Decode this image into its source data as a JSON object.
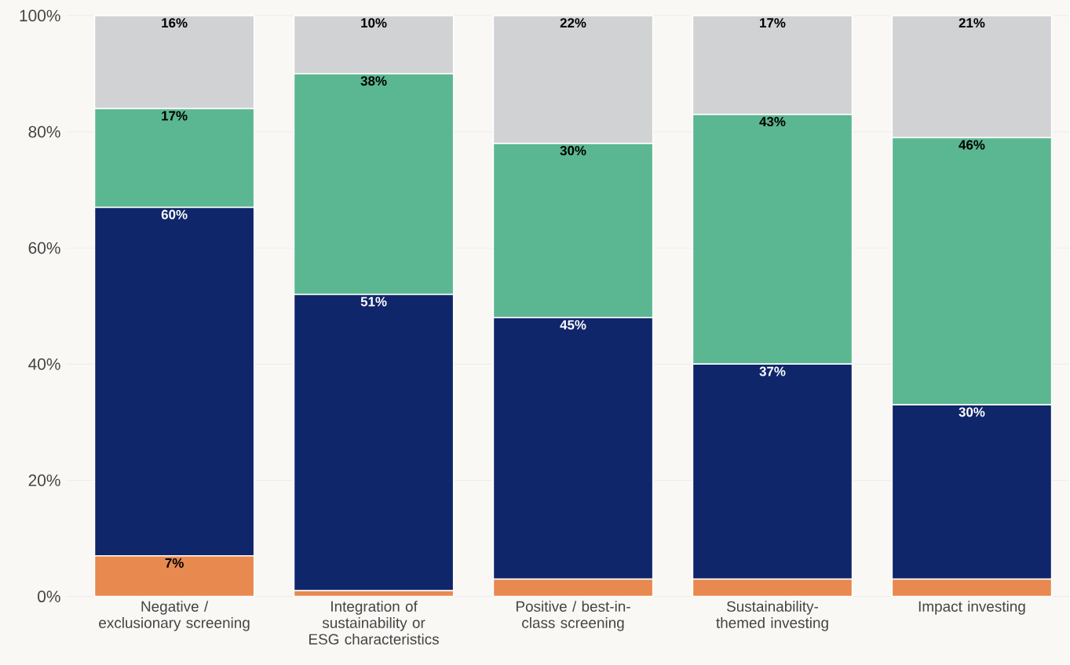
{
  "chart_data": {
    "type": "bar",
    "stacked": true,
    "categories": [
      "Negative / exclusionary screening",
      "Integration of sustainability or ESG characteristics",
      "Positive / best-in-class screening",
      "Sustainability-themed investing",
      "Impact investing"
    ],
    "series": [
      {
        "color": "#e8894f",
        "values": [
          7,
          1,
          3,
          3,
          3
        ],
        "value_labels": [
          "7%",
          null,
          null,
          null,
          null
        ]
      },
      {
        "color": "#10266a",
        "values": [
          60,
          51,
          45,
          37,
          30
        ],
        "value_labels": [
          "60%",
          "51%",
          "45%",
          "37%",
          "30%"
        ]
      },
      {
        "color": "#5bb791",
        "values": [
          17,
          38,
          30,
          43,
          46
        ],
        "value_labels": [
          "17%",
          "38%",
          "30%",
          "43%",
          "46%"
        ]
      },
      {
        "color": "#d1d2d4",
        "values": [
          16,
          10,
          22,
          17,
          21
        ],
        "value_labels": [
          "16%",
          "10%",
          "22%",
          "17%",
          "21%"
        ]
      }
    ],
    "ylim": [
      0,
      100
    ],
    "yticks": [
      {
        "value": 0,
        "label": "0%"
      },
      {
        "value": 20,
        "label": "20%"
      },
      {
        "value": 40,
        "label": "40%"
      },
      {
        "value": 60,
        "label": "60%"
      },
      {
        "value": 80,
        "label": "80%"
      },
      {
        "value": 100,
        "label": "100%"
      }
    ],
    "grid": "y"
  }
}
